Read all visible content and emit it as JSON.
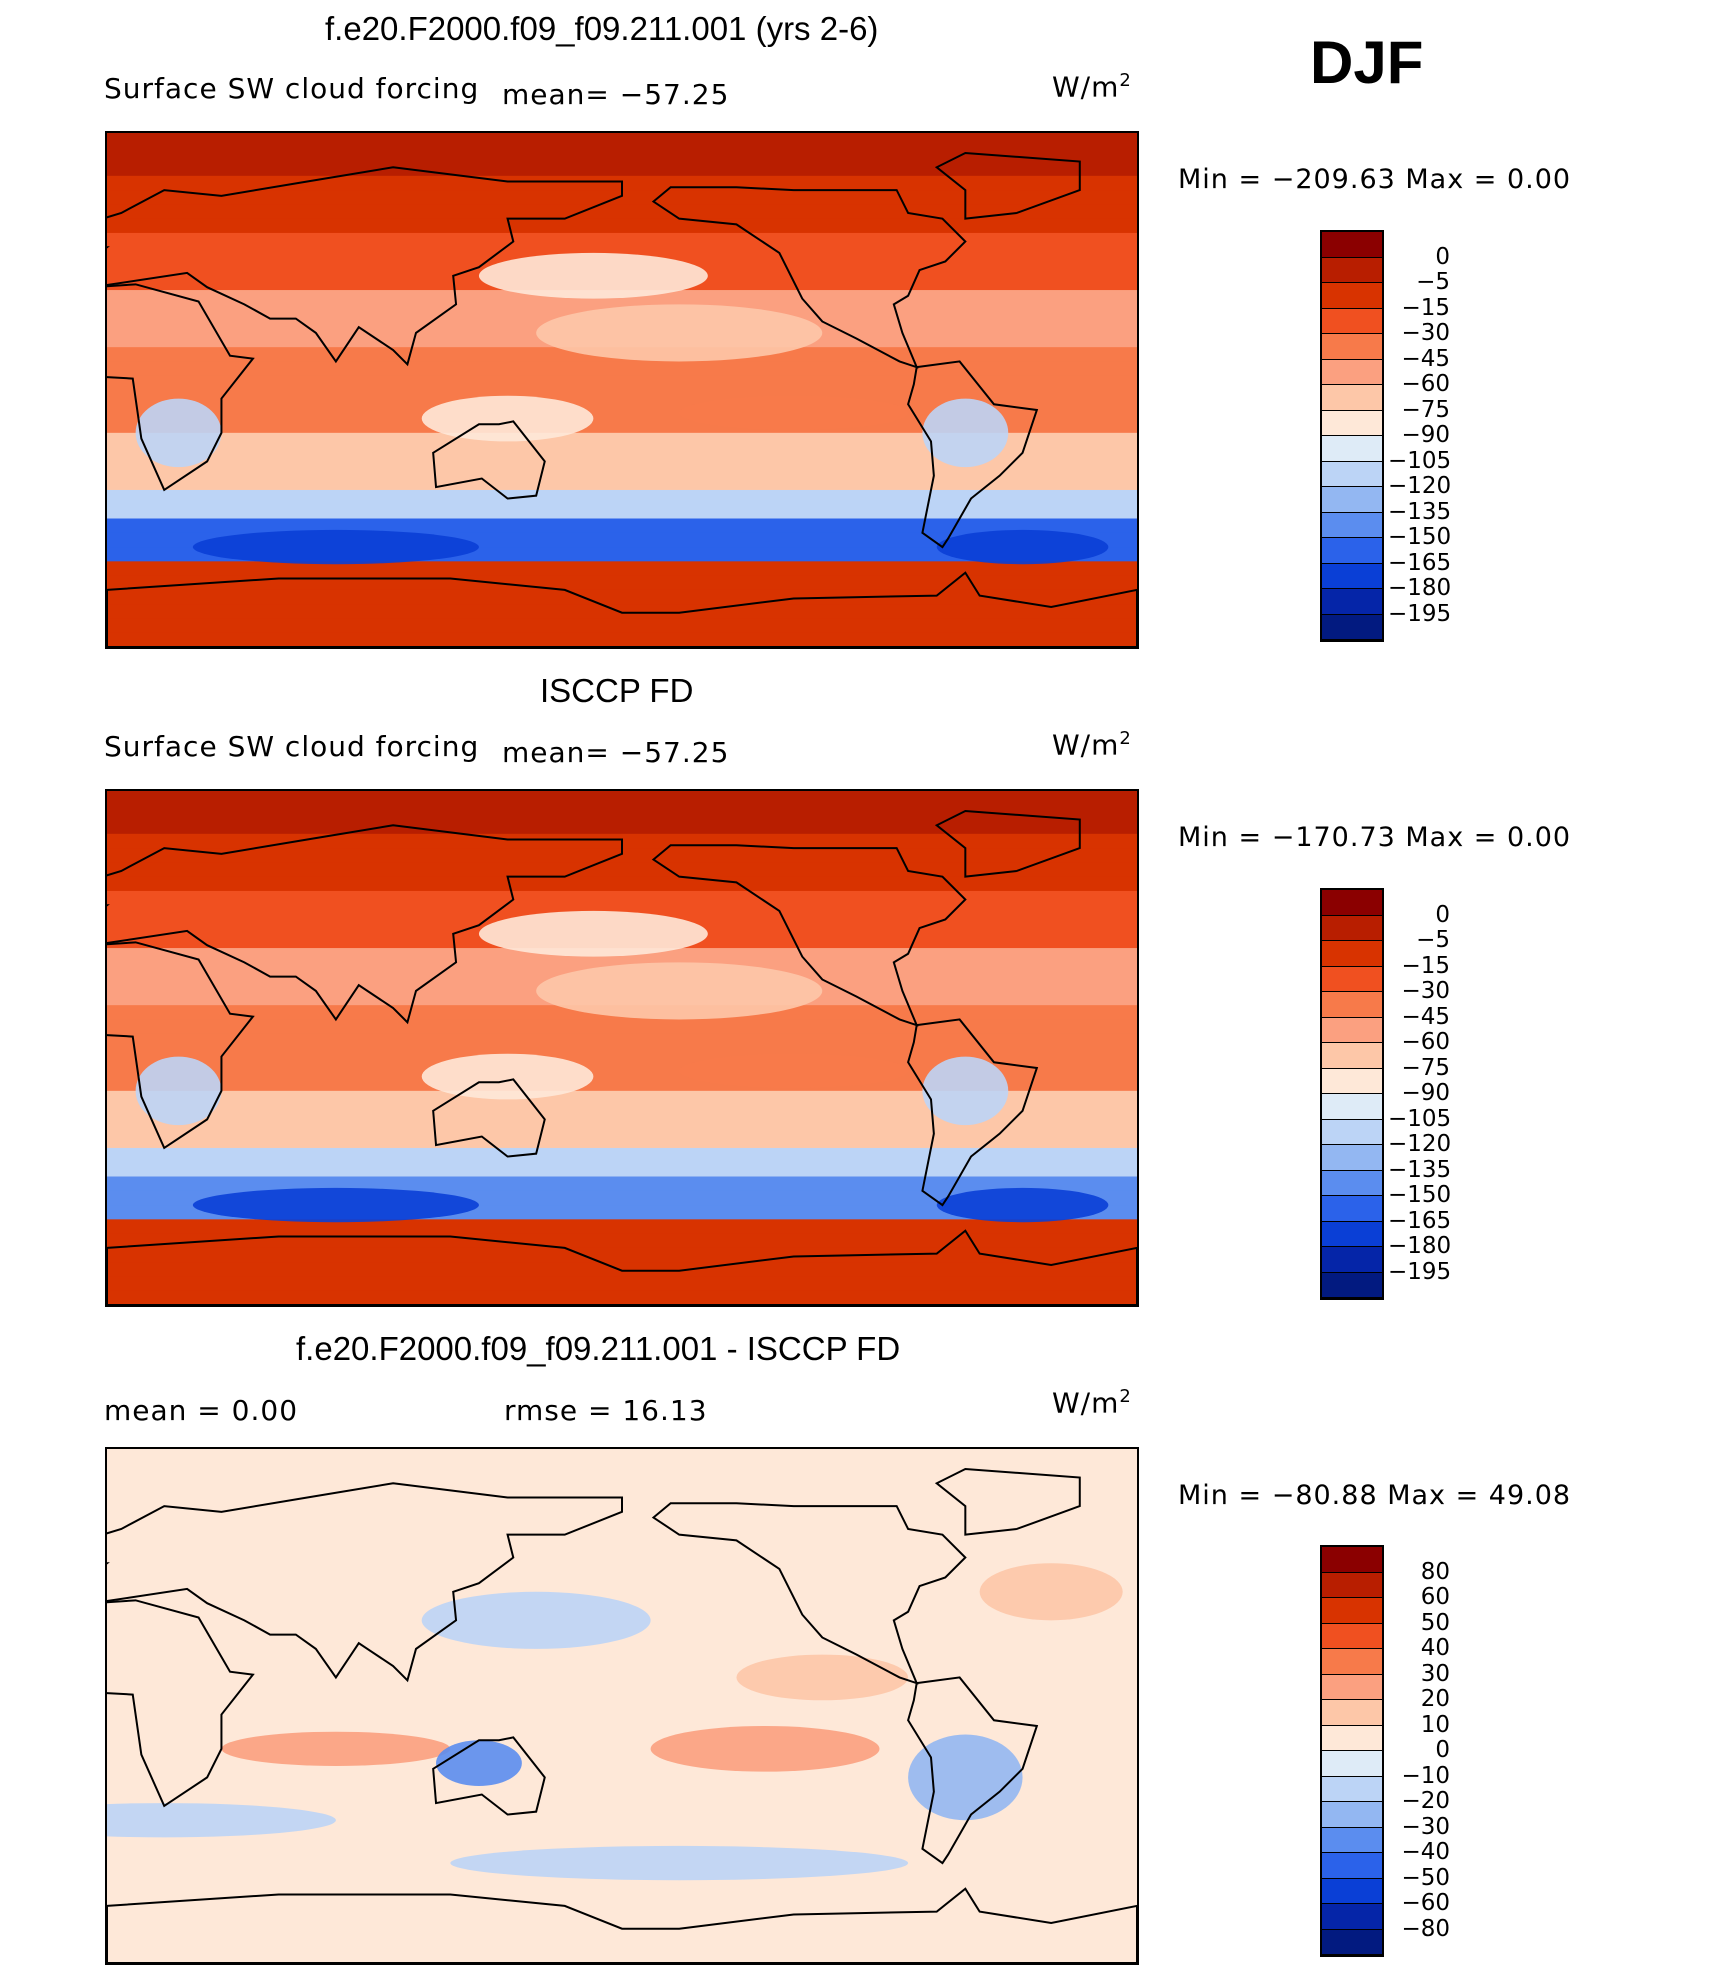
{
  "season": "DJF",
  "units_main": "W/m",
  "units_sup": "2",
  "panels": [
    {
      "title": "f.e20.F2000.f09_f09.211.001 (yrs 2-6)",
      "left_label": "Surface SW cloud forcing",
      "center_label": "mean= −57.25",
      "right_label_main": "W/m",
      "right_label_sup": "2",
      "minmax": "Min = −209.63 Max =   0.00"
    },
    {
      "title": "ISCCP FD",
      "left_label": "Surface SW cloud forcing",
      "center_label": "mean= −57.25",
      "right_label_main": "W/m",
      "right_label_sup": "2",
      "minmax": "Min = −170.73 Max =   0.00"
    },
    {
      "title": "f.e20.F2000.f09_f09.211.001 - ISCCP FD",
      "left_label": "mean =    0.00",
      "center_label": "rmse =   16.13",
      "right_label_main": "W/m",
      "right_label_sup": "2",
      "minmax": "Min = −80.88 Max =  49.08"
    }
  ],
  "chart_data": [
    {
      "type": "heatmap",
      "title": "f.e20.F2000.f09_f09.211.001 (yrs 2-6)",
      "variable": "Surface SW cloud forcing",
      "units": "W/m2",
      "mean": -57.25,
      "min": -209.63,
      "max": 0.0,
      "colorbar_levels": [
        "0",
        "−5",
        "−15",
        "−30",
        "−45",
        "−60",
        "−75",
        "−90",
        "−105",
        "−120",
        "−135",
        "−150",
        "−165",
        "−180",
        "−195"
      ],
      "colorbar_colors": [
        "#8b0000",
        "#b81e00",
        "#d83300",
        "#f05020",
        "#f77a4a",
        "#fba080",
        "#fdc7a8",
        "#fee8d8",
        "#deebf7",
        "#bcd4f6",
        "#93b7f2",
        "#5b8def",
        "#2b62ea",
        "#0a3fd6",
        "#0525a8",
        "#021a80"
      ]
    },
    {
      "type": "heatmap",
      "title": "ISCCP FD",
      "variable": "Surface SW cloud forcing",
      "units": "W/m2",
      "mean": -57.25,
      "min": -170.73,
      "max": 0.0,
      "colorbar_levels": [
        "0",
        "−5",
        "−15",
        "−30",
        "−45",
        "−60",
        "−75",
        "−90",
        "−105",
        "−120",
        "−135",
        "−150",
        "−165",
        "−180",
        "−195"
      ],
      "colorbar_colors": [
        "#8b0000",
        "#b81e00",
        "#d83300",
        "#f05020",
        "#f77a4a",
        "#fba080",
        "#fdc7a8",
        "#fee8d8",
        "#deebf7",
        "#bcd4f6",
        "#93b7f2",
        "#5b8def",
        "#2b62ea",
        "#0a3fd6",
        "#0525a8",
        "#021a80"
      ]
    },
    {
      "type": "heatmap",
      "title": "f.e20.F2000.f09_f09.211.001 - ISCCP FD",
      "units": "W/m2",
      "mean": 0.0,
      "rmse": 16.13,
      "min": -80.88,
      "max": 49.08,
      "colorbar_levels": [
        "80",
        "60",
        "50",
        "40",
        "30",
        "20",
        "10",
        "0",
        "−10",
        "−20",
        "−30",
        "−40",
        "−50",
        "−60",
        "−80"
      ],
      "colorbar_colors": [
        "#8b0000",
        "#b81e00",
        "#d83300",
        "#f05020",
        "#f77a4a",
        "#fba080",
        "#fdc7a8",
        "#fee8d8",
        "#deebf7",
        "#bcd4f6",
        "#93b7f2",
        "#5b8def",
        "#2b62ea",
        "#0a3fd6",
        "#0525a8",
        "#021a80"
      ]
    }
  ]
}
